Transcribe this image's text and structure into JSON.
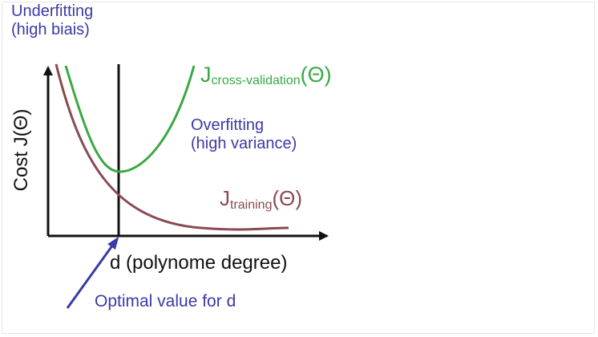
{
  "diagram": {
    "underfitting": {
      "line1": "Underfitting",
      "line2": "(high biais)"
    },
    "overfitting": {
      "line1": "Overfitting",
      "line2": "(high variance)"
    },
    "cv_curve_label": {
      "main": "J",
      "subscript": "cross-validation",
      "argument": "(Θ)"
    },
    "training_curve_label": {
      "main": "J",
      "subscript": "training",
      "argument": "(Θ)"
    },
    "y_axis_label": "Cost J(Θ)",
    "x_axis_label": "d (polynome degree)",
    "optimal_annotation": "Optimal value for d",
    "colors": {
      "training_curve": "#8a4a52",
      "cv_curve": "#3aa844",
      "annotation_text": "#3b3aa6",
      "axes": "#111111"
    }
  }
}
